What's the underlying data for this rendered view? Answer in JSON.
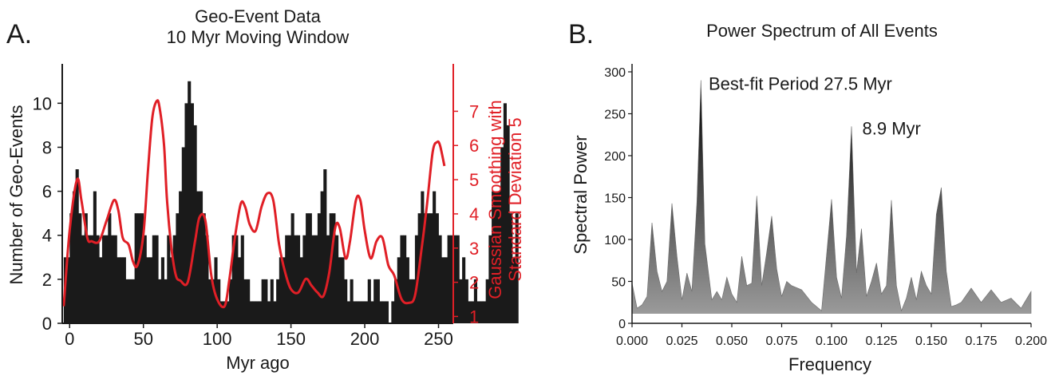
{
  "colors": {
    "bars": "#1a1a1a",
    "smooth": "#e01f26",
    "axis": "#1a1a1a",
    "fill_top": "#000000",
    "fill_bottom": "#9a9a9a"
  },
  "chart_data": [
    {
      "type": "bar",
      "panel_label": "A.",
      "title": "Geo-Event Data",
      "subtitle": "10 Myr Moving Window",
      "xlabel": "Myr ago",
      "ylabel": "Number of Geo-Events",
      "y2label_line1": "Gaussian Smoothing with",
      "y2label_line2": "Standard Deviation 5",
      "xlim": [
        -5,
        260
      ],
      "ylim": [
        0,
        11.5
      ],
      "y2lim": [
        0.8,
        8.2
      ],
      "xticks": [
        "0",
        "50",
        "100",
        "150",
        "200",
        "250"
      ],
      "yticks": [
        "0",
        "2",
        "4",
        "6",
        "8",
        "10"
      ],
      "y2ticks": [
        "1",
        "2",
        "3",
        "4",
        "5",
        "6",
        "7"
      ],
      "bin_width_myr": 2,
      "bars": {
        "x_start": -4,
        "values": [
          3,
          3,
          5,
          6,
          7,
          5,
          4,
          5,
          4,
          4,
          6,
          4,
          3,
          4,
          4,
          5,
          4,
          4,
          3,
          3,
          3,
          2,
          2,
          2,
          5,
          5,
          5,
          4,
          3,
          3,
          4,
          4,
          2,
          3,
          2,
          4,
          3,
          4,
          5,
          6,
          8,
          10,
          11,
          10,
          9,
          6,
          6,
          5,
          4,
          2,
          2,
          3,
          2,
          1,
          1,
          1,
          2,
          4,
          4,
          3,
          4,
          2,
          2,
          1,
          1,
          1,
          1,
          2,
          2,
          1,
          2,
          1,
          2,
          3,
          3,
          4,
          4,
          5,
          4,
          4,
          3,
          4,
          5,
          5,
          4,
          4,
          5,
          6,
          7,
          4,
          5,
          5,
          4,
          3,
          3,
          2,
          1,
          2,
          1,
          1,
          1,
          1,
          1,
          2,
          1,
          2,
          2,
          1,
          1,
          1,
          0,
          1,
          2,
          3,
          4,
          4,
          3,
          2,
          2,
          4,
          5,
          6,
          5,
          5,
          5,
          6,
          5,
          4,
          3,
          3,
          4,
          4,
          4,
          4,
          2,
          3,
          2,
          1,
          1,
          2,
          1,
          1,
          1,
          2,
          4,
          6,
          6,
          6,
          8,
          10,
          9,
          5,
          3,
          5
        ]
      },
      "smooth": {
        "x": [
          -4,
          0,
          5,
          8,
          12,
          15,
          20,
          25,
          30,
          33,
          36,
          40,
          43,
          46,
          50,
          53,
          56,
          59,
          61,
          64,
          66,
          69,
          72,
          75,
          80,
          85,
          88,
          92,
          96,
          100,
          105,
          108,
          112,
          116,
          119,
          122,
          126,
          130,
          134,
          138,
          142,
          146,
          150,
          155,
          160,
          164,
          168,
          172,
          176,
          180,
          183,
          187,
          190,
          194,
          197,
          200,
          204,
          208,
          212,
          216,
          220,
          225,
          230,
          234,
          238,
          242,
          246,
          249,
          251,
          254
        ],
        "y": [
          1.3,
          3.5,
          5,
          4.4,
          3.3,
          3.2,
          3.2,
          3.8,
          4.4,
          4.1,
          3.3,
          3.1,
          2.6,
          2.5,
          3.4,
          5.2,
          6.8,
          7.3,
          7.1,
          6,
          4.4,
          3,
          2.2,
          2.05,
          2,
          3.2,
          3.9,
          3.8,
          2.2,
          1.5,
          1.3,
          2,
          3.3,
          4.3,
          4.2,
          3.7,
          3.5,
          4.2,
          4.6,
          4.4,
          3.1,
          2.3,
          1.8,
          1.7,
          2.1,
          1.9,
          1.7,
          1.6,
          2.3,
          3.6,
          3.6,
          2.7,
          3.2,
          4.4,
          4.4,
          3.5,
          2.7,
          3.2,
          3.3,
          2.5,
          2.2,
          1.5,
          1.4,
          1.6,
          2.8,
          4.2,
          5.8,
          6.1,
          6.0,
          5.4
        ]
      }
    },
    {
      "type": "area",
      "panel_label": "B.",
      "title": "Power Spectrum of All Events",
      "xlabel": "Frequency",
      "ylabel": "Spectral Power",
      "xlim": [
        0,
        0.2
      ],
      "ylim": [
        0,
        300
      ],
      "xticks": [
        "0.000",
        "0.025",
        "0.050",
        "0.075",
        "0.100",
        "0.125",
        "0.150",
        "0.175",
        "0.200"
      ],
      "yticks": [
        "0",
        "50",
        "100",
        "150",
        "200",
        "250",
        "300"
      ],
      "annotations": [
        {
          "text": "Best-fit Period 27.5 Myr",
          "x": 0.036,
          "y": 288
        },
        {
          "text": "8.9 Myr",
          "x": 0.113,
          "y": 235
        }
      ],
      "baseline": 12,
      "x": [
        0.0,
        0.0025,
        0.005,
        0.0075,
        0.01,
        0.0125,
        0.015,
        0.0175,
        0.02,
        0.0225,
        0.025,
        0.0275,
        0.03,
        0.0325,
        0.0345,
        0.0365,
        0.04,
        0.0425,
        0.045,
        0.0475,
        0.05,
        0.0525,
        0.055,
        0.0575,
        0.06,
        0.0625,
        0.065,
        0.0675,
        0.07,
        0.0725,
        0.075,
        0.0775,
        0.08,
        0.085,
        0.09,
        0.095,
        0.1,
        0.1025,
        0.105,
        0.1075,
        0.11,
        0.1125,
        0.115,
        0.1175,
        0.12,
        0.1225,
        0.125,
        0.1275,
        0.13,
        0.1325,
        0.135,
        0.1375,
        0.14,
        0.1425,
        0.145,
        0.1475,
        0.15,
        0.1525,
        0.155,
        0.1575,
        0.16,
        0.1625,
        0.165,
        0.17,
        0.175,
        0.18,
        0.185,
        0.19,
        0.195,
        0.2
      ],
      "y": [
        48,
        18,
        22,
        32,
        120,
        62,
        38,
        50,
        143,
        80,
        28,
        60,
        38,
        145,
        290,
        95,
        28,
        38,
        28,
        55,
        35,
        25,
        80,
        45,
        48,
        152,
        45,
        85,
        128,
        65,
        32,
        50,
        45,
        40,
        25,
        15,
        148,
        55,
        30,
        105,
        235,
        60,
        113,
        32,
        50,
        72,
        35,
        45,
        147,
        45,
        15,
        30,
        55,
        28,
        62,
        45,
        35,
        130,
        162,
        62,
        20,
        22,
        25,
        42,
        25,
        40,
        25,
        30,
        18,
        38
      ]
    }
  ]
}
